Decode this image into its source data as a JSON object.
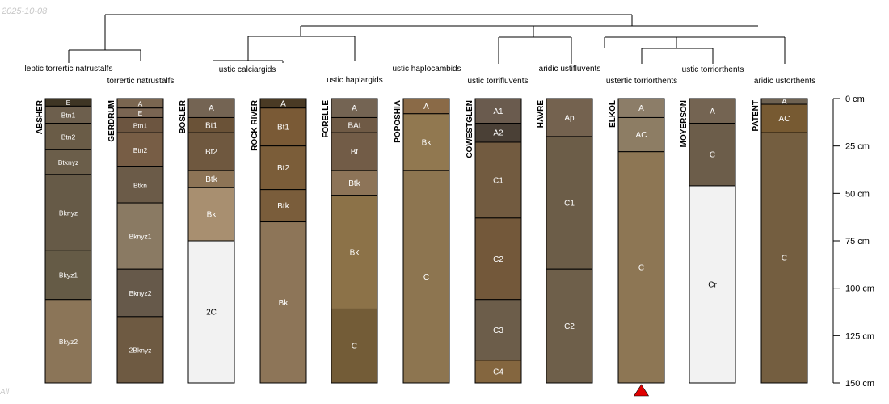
{
  "header": {
    "date": "2025-10-08",
    "footer_tag": "All"
  },
  "chart_data": {
    "type": "soil-profile",
    "title": "",
    "depth_axis": {
      "unit": "cm",
      "range": [
        0,
        150
      ],
      "ticks": [
        0,
        25,
        50,
        75,
        100,
        125,
        150
      ],
      "tick_labels": [
        "0 cm",
        "25 cm",
        "50 cm",
        "75 cm",
        "100 cm",
        "125 cm",
        "150 cm"
      ]
    },
    "taxa": [
      "leptic torrertic natrustalfs",
      "torrertic natrustalfs",
      "ustic calciargids",
      "ustic haplargids",
      "ustic haplocambids",
      "ustic torrifluvents",
      "aridic ustifluvents",
      "ustertic torriorthents",
      "ustic torriorthents",
      "aridic ustorthents"
    ],
    "profiles": [
      {
        "name": "ABSHER",
        "horizons": [
          {
            "name": "E",
            "top": 0,
            "bottom": 4,
            "color": "#3e3524"
          },
          {
            "name": "Btn1",
            "top": 4,
            "bottom": 13,
            "color": "#6d5f4d"
          },
          {
            "name": "Btn2",
            "top": 13,
            "bottom": 27,
            "color": "#6a5c47"
          },
          {
            "name": "Btknyz",
            "top": 27,
            "bottom": 40,
            "color": "#6b5e4a"
          },
          {
            "name": "Bknyz",
            "top": 40,
            "bottom": 80,
            "color": "#665a47"
          },
          {
            "name": "Bkyz1",
            "top": 80,
            "bottom": 106,
            "color": "#655b46"
          },
          {
            "name": "Bkyz2",
            "top": 106,
            "bottom": 150,
            "color": "#8b7558"
          }
        ]
      },
      {
        "name": "GERDRUM",
        "horizons": [
          {
            "name": "A",
            "top": 0,
            "bottom": 5,
            "color": "#7a6650"
          },
          {
            "name": "E",
            "top": 5,
            "bottom": 10,
            "color": "#7a6552"
          },
          {
            "name": "Btn1",
            "top": 10,
            "bottom": 18,
            "color": "#6c5540"
          },
          {
            "name": "Btn2",
            "top": 18,
            "bottom": 36,
            "color": "#775d45"
          },
          {
            "name": "Btkn",
            "top": 36,
            "bottom": 55,
            "color": "#6b5b48"
          },
          {
            "name": "Bknyz1",
            "top": 55,
            "bottom": 90,
            "color": "#8a7a63"
          },
          {
            "name": "Bknyz2",
            "top": 90,
            "bottom": 115,
            "color": "#66594a"
          },
          {
            "name": "2Bknyz",
            "top": 115,
            "bottom": 150,
            "color": "#6e5a42"
          }
        ]
      },
      {
        "name": "BOSLER",
        "horizons": [
          {
            "name": "A",
            "top": 0,
            "bottom": 10,
            "color": "#746453"
          },
          {
            "name": "Bt1",
            "top": 10,
            "bottom": 18,
            "color": "#6a5237"
          },
          {
            "name": "Bt2",
            "top": 18,
            "bottom": 38,
            "color": "#6f583f"
          },
          {
            "name": "Btk",
            "top": 38,
            "bottom": 47,
            "color": "#8d7456"
          },
          {
            "name": "Bk",
            "top": 47,
            "bottom": 75,
            "color": "#a88f70"
          },
          {
            "name": "2C",
            "top": 75,
            "bottom": 150,
            "color": "#f2f2f2"
          }
        ]
      },
      {
        "name": "ROCK RIVER",
        "horizons": [
          {
            "name": "A",
            "top": 0,
            "bottom": 5,
            "color": "#4a3a24"
          },
          {
            "name": "Bt1",
            "top": 5,
            "bottom": 25,
            "color": "#7a5a36"
          },
          {
            "name": "Bt2",
            "top": 25,
            "bottom": 48,
            "color": "#7b5d39"
          },
          {
            "name": "Btk",
            "top": 48,
            "bottom": 65,
            "color": "#7a5d3b"
          },
          {
            "name": "Bk",
            "top": 65,
            "bottom": 150,
            "color": "#8d7558"
          }
        ]
      },
      {
        "name": "FORELLE",
        "horizons": [
          {
            "name": "A",
            "top": 0,
            "bottom": 10,
            "color": "#746453"
          },
          {
            "name": "BAt",
            "top": 10,
            "bottom": 18,
            "color": "#6f5a45"
          },
          {
            "name": "Bt",
            "top": 18,
            "bottom": 38,
            "color": "#725c47"
          },
          {
            "name": "Btk",
            "top": 38,
            "bottom": 51,
            "color": "#8d7458"
          },
          {
            "name": "Bk",
            "top": 51,
            "bottom": 111,
            "color": "#8c7248"
          },
          {
            "name": "C",
            "top": 111,
            "bottom": 150,
            "color": "#735c37"
          }
        ]
      },
      {
        "name": "POPOSHIA",
        "horizons": [
          {
            "name": "A",
            "top": 0,
            "bottom": 8,
            "color": "#8a6a47"
          },
          {
            "name": "Bk",
            "top": 8,
            "bottom": 38,
            "color": "#917850"
          },
          {
            "name": "C",
            "top": 38,
            "bottom": 150,
            "color": "#8d7550"
          }
        ]
      },
      {
        "name": "COWESTGLEN",
        "horizons": [
          {
            "name": "A1",
            "top": 0,
            "bottom": 13,
            "color": "#6a5b4e"
          },
          {
            "name": "A2",
            "top": 13,
            "bottom": 23,
            "color": "#4a4036"
          },
          {
            "name": "C1",
            "top": 23,
            "bottom": 63,
            "color": "#725b40"
          },
          {
            "name": "C2",
            "top": 63,
            "bottom": 106,
            "color": "#73583a"
          },
          {
            "name": "C3",
            "top": 106,
            "bottom": 138,
            "color": "#6c5d4a"
          },
          {
            "name": "C4",
            "top": 138,
            "bottom": 150,
            "color": "#84663f"
          }
        ]
      },
      {
        "name": "HAVRE",
        "horizons": [
          {
            "name": "Ap",
            "top": 0,
            "bottom": 20,
            "color": "#74624f"
          },
          {
            "name": "C1",
            "top": 20,
            "bottom": 90,
            "color": "#6c5d48"
          },
          {
            "name": "C2",
            "top": 90,
            "bottom": 150,
            "color": "#6e5f4a"
          }
        ]
      },
      {
        "name": "ELKOL",
        "horizons": [
          {
            "name": "A",
            "top": 0,
            "bottom": 10,
            "color": "#8c7d68"
          },
          {
            "name": "AC",
            "top": 10,
            "bottom": 28,
            "color": "#8d7d64"
          },
          {
            "name": "C",
            "top": 28,
            "bottom": 150,
            "color": "#8d7654"
          }
        ]
      },
      {
        "name": "MOYERSON",
        "horizons": [
          {
            "name": "A",
            "top": 0,
            "bottom": 13,
            "color": "#746452"
          },
          {
            "name": "C",
            "top": 13,
            "bottom": 46,
            "color": "#6c5d4a"
          },
          {
            "name": "Cr",
            "top": 46,
            "bottom": 150,
            "color": "#f2f2f2"
          }
        ]
      },
      {
        "name": "PATENT",
        "horizons": [
          {
            "name": "A",
            "top": 0,
            "bottom": 3,
            "color": "#6e6252"
          },
          {
            "name": "AC",
            "top": 3,
            "bottom": 18,
            "color": "#775a32"
          },
          {
            "name": "C",
            "top": 18,
            "bottom": 150,
            "color": "#745e40"
          }
        ]
      }
    ],
    "marker": {
      "profile": "ELKOL",
      "color": "#e00000",
      "shape": "triangle-up"
    }
  }
}
